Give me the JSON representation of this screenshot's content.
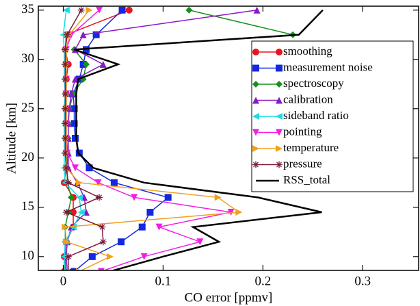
{
  "chart_data": {
    "type": "line",
    "x_label": "CO error [ppmv]",
    "y_label": "Altitude [km]",
    "xlim": [
      -0.025,
      0.356
    ],
    "ylim": [
      8.6,
      35.4
    ],
    "xticks": [
      0,
      0.1,
      0.2,
      0.3
    ],
    "yticks": [
      10,
      15,
      20,
      25,
      30,
      35
    ],
    "legend": "upper right",
    "y": [
      8.5,
      10,
      11.5,
      13,
      14.5,
      16,
      17.5,
      19,
      20.5,
      22,
      23.5,
      25,
      26.5,
      28,
      29.5,
      31,
      32.5,
      35
    ],
    "series": [
      {
        "name": "smoothing",
        "color": "#e8141e",
        "marker": "circle",
        "values": [
          0.001,
          0.001,
          0.003,
          0.01,
          0.01,
          0.01,
          0.001,
          0.003,
          0.003,
          0.003,
          0.003,
          0.003,
          0.003,
          0.003,
          0.005,
          0.002,
          0.003,
          0.066
        ]
      },
      {
        "name": "measurement noise",
        "color": "#1428e0",
        "marker": "square",
        "values": [
          0.011,
          0.029,
          0.058,
          0.079,
          0.087,
          0.105,
          0.051,
          0.026,
          0.016,
          0.012,
          0.011,
          0.011,
          0.01,
          0.016,
          0.02,
          0.023,
          0.033,
          0.059
        ]
      },
      {
        "name": "spectroscopy",
        "color": "#17911c",
        "marker": "diamond",
        "values": [
          0.002,
          0.002,
          0.002,
          0.002,
          0.005,
          0.008,
          0.004,
          0.004,
          0.004,
          0.005,
          0.005,
          0.006,
          0.01,
          0.02,
          0.023,
          0.011,
          0.23,
          0.126
        ]
      },
      {
        "name": "calibration",
        "color": "#8a18c8",
        "marker": "triangle-up",
        "values": [
          0.004,
          0.003,
          0.004,
          0.008,
          0.023,
          0.021,
          0.014,
          0.005,
          0.005,
          0.005,
          0.005,
          0.006,
          0.008,
          0.012,
          0.04,
          0.012,
          0.02,
          0.194
        ]
      },
      {
        "name": "sideband ratio",
        "color": "#19dce6",
        "marker": "triangle-left",
        "values": [
          0.001,
          0.001,
          0.002,
          0.01,
          0.018,
          0.016,
          0.002,
          0.001,
          0.001,
          0.001,
          0.001,
          0.001,
          0.002,
          0.001,
          0.001,
          0.001,
          0.0,
          0.003
        ]
      },
      {
        "name": "pointing",
        "color": "#f21ee6",
        "marker": "triangle-down",
        "values": [
          0.038,
          0.081,
          0.137,
          0.096,
          0.168,
          0.071,
          0.035,
          0.012,
          0.004,
          0.003,
          0.003,
          0.003,
          0.003,
          0.003,
          0.003,
          0.003,
          0.008,
          0.036
        ]
      },
      {
        "name": "temperature",
        "color": "#f0a01e",
        "marker": "triangle-right",
        "values": [
          0.016,
          0.047,
          0.003,
          0.002,
          0.176,
          0.155,
          0.016,
          0.003,
          0.003,
          0.003,
          0.003,
          0.003,
          0.003,
          0.003,
          0.003,
          0.003,
          0.006,
          0.026
        ]
      },
      {
        "name": "pressure",
        "color": "#7a1a3a",
        "marker": "star",
        "values": [
          0.005,
          0.005,
          0.04,
          0.039,
          0.003,
          0.036,
          0.005,
          0.003,
          0.002,
          0.002,
          0.002,
          0.002,
          0.002,
          0.002,
          0.002,
          0.002,
          0.004,
          0.018
        ]
      },
      {
        "name": "RSS_total",
        "color": "#000000",
        "marker": "none",
        "values": [
          0.047,
          0.1,
          0.156,
          0.13,
          0.259,
          0.195,
          0.081,
          0.03,
          0.015,
          0.013,
          0.013,
          0.013,
          0.013,
          0.015,
          0.055,
          0.011,
          0.236,
          0.26
        ]
      }
    ]
  }
}
